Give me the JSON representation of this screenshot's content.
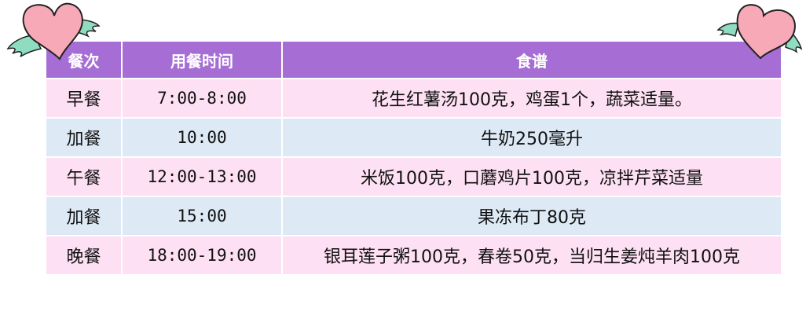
{
  "table": {
    "headers": [
      "餐次",
      "用餐时间",
      "食谱"
    ],
    "rows": [
      {
        "meal": "早餐",
        "time": "7:00-8:00",
        "recipe": "花生红薯汤100克，鸡蛋1个，蔬菜适量。",
        "color": "#fde0f3"
      },
      {
        "meal": "加餐",
        "time": "10:00",
        "recipe": "牛奶250毫升",
        "color": "#dde9f5"
      },
      {
        "meal": "午餐",
        "time": "12:00-13:00",
        "recipe": "米饭100克，口蘑鸡片100克，凉拌芹菜适量",
        "color": "#fde0f3"
      },
      {
        "meal": "加餐",
        "time": "15:00",
        "recipe": "果冻布丁80克",
        "color": "#dde9f5"
      },
      {
        "meal": "晚餐",
        "time": "18:00-19:00",
        "recipe": "银耳莲子粥100克，春卷50克，当归生姜炖羊肉100克",
        "color": "#fde0f3"
      }
    ]
  },
  "colors": {
    "header": "#a66dd4",
    "heart": "#f7a9b8",
    "wing": "#8fdcc0"
  },
  "decorations": [
    "winged-heart-icon",
    "winged-heart-icon"
  ]
}
